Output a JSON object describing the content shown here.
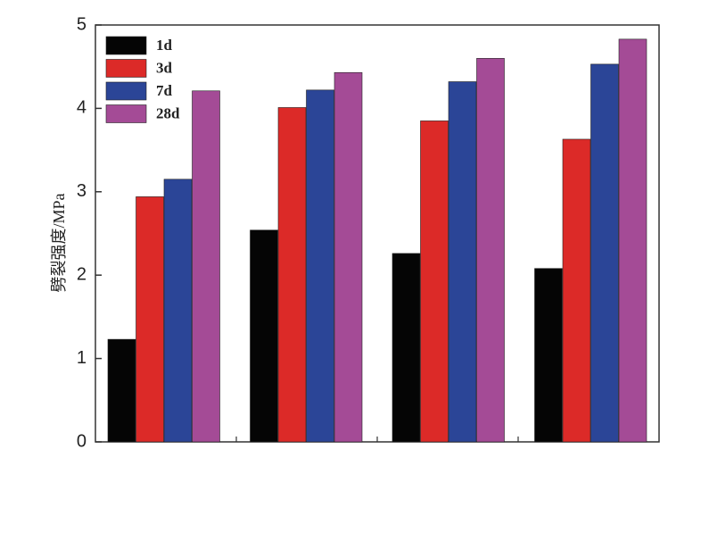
{
  "chart_data": {
    "type": "bar",
    "title": "",
    "xlabel": "",
    "ylabel": "劈裂强度/MPa",
    "ylim": [
      0,
      5
    ],
    "yticks": [
      0,
      1,
      2,
      3,
      4,
      5
    ],
    "ytick_labels": [
      "0",
      "1",
      "2",
      "3",
      "4",
      "5"
    ],
    "categories": [
      "",
      "",
      "",
      ""
    ],
    "legend_position": "top-left",
    "grid": false,
    "series": [
      {
        "name": "1d",
        "color": "#050505",
        "values": [
          1.23,
          2.54,
          2.26,
          2.08
        ]
      },
      {
        "name": "3d",
        "color": "#dc2a28",
        "values": [
          2.94,
          4.01,
          3.85,
          3.63
        ]
      },
      {
        "name": "7d",
        "color": "#2b4597",
        "values": [
          3.15,
          4.22,
          4.32,
          4.53
        ]
      },
      {
        "name": "28d",
        "color": "#a44b96",
        "values": [
          4.21,
          4.43,
          4.6,
          4.83
        ]
      }
    ]
  }
}
